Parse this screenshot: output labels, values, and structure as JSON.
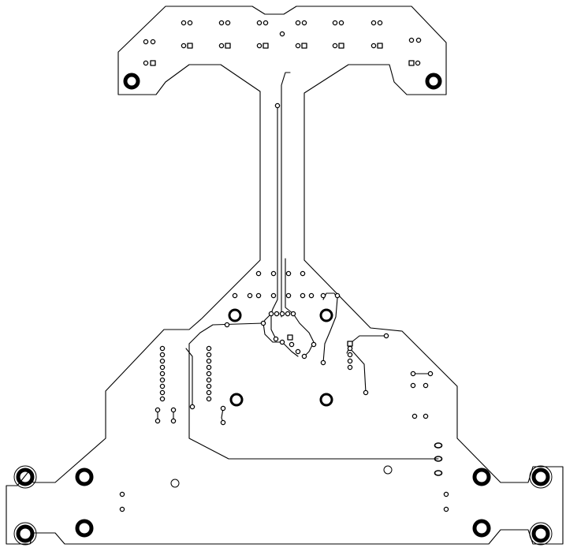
{
  "view": {
    "type": "pcb-layer-plot",
    "background": "#ffffff",
    "ink": "#000000"
  },
  "colors": {
    "trace": "#000000",
    "pad_fill": "#ffffff"
  }
}
